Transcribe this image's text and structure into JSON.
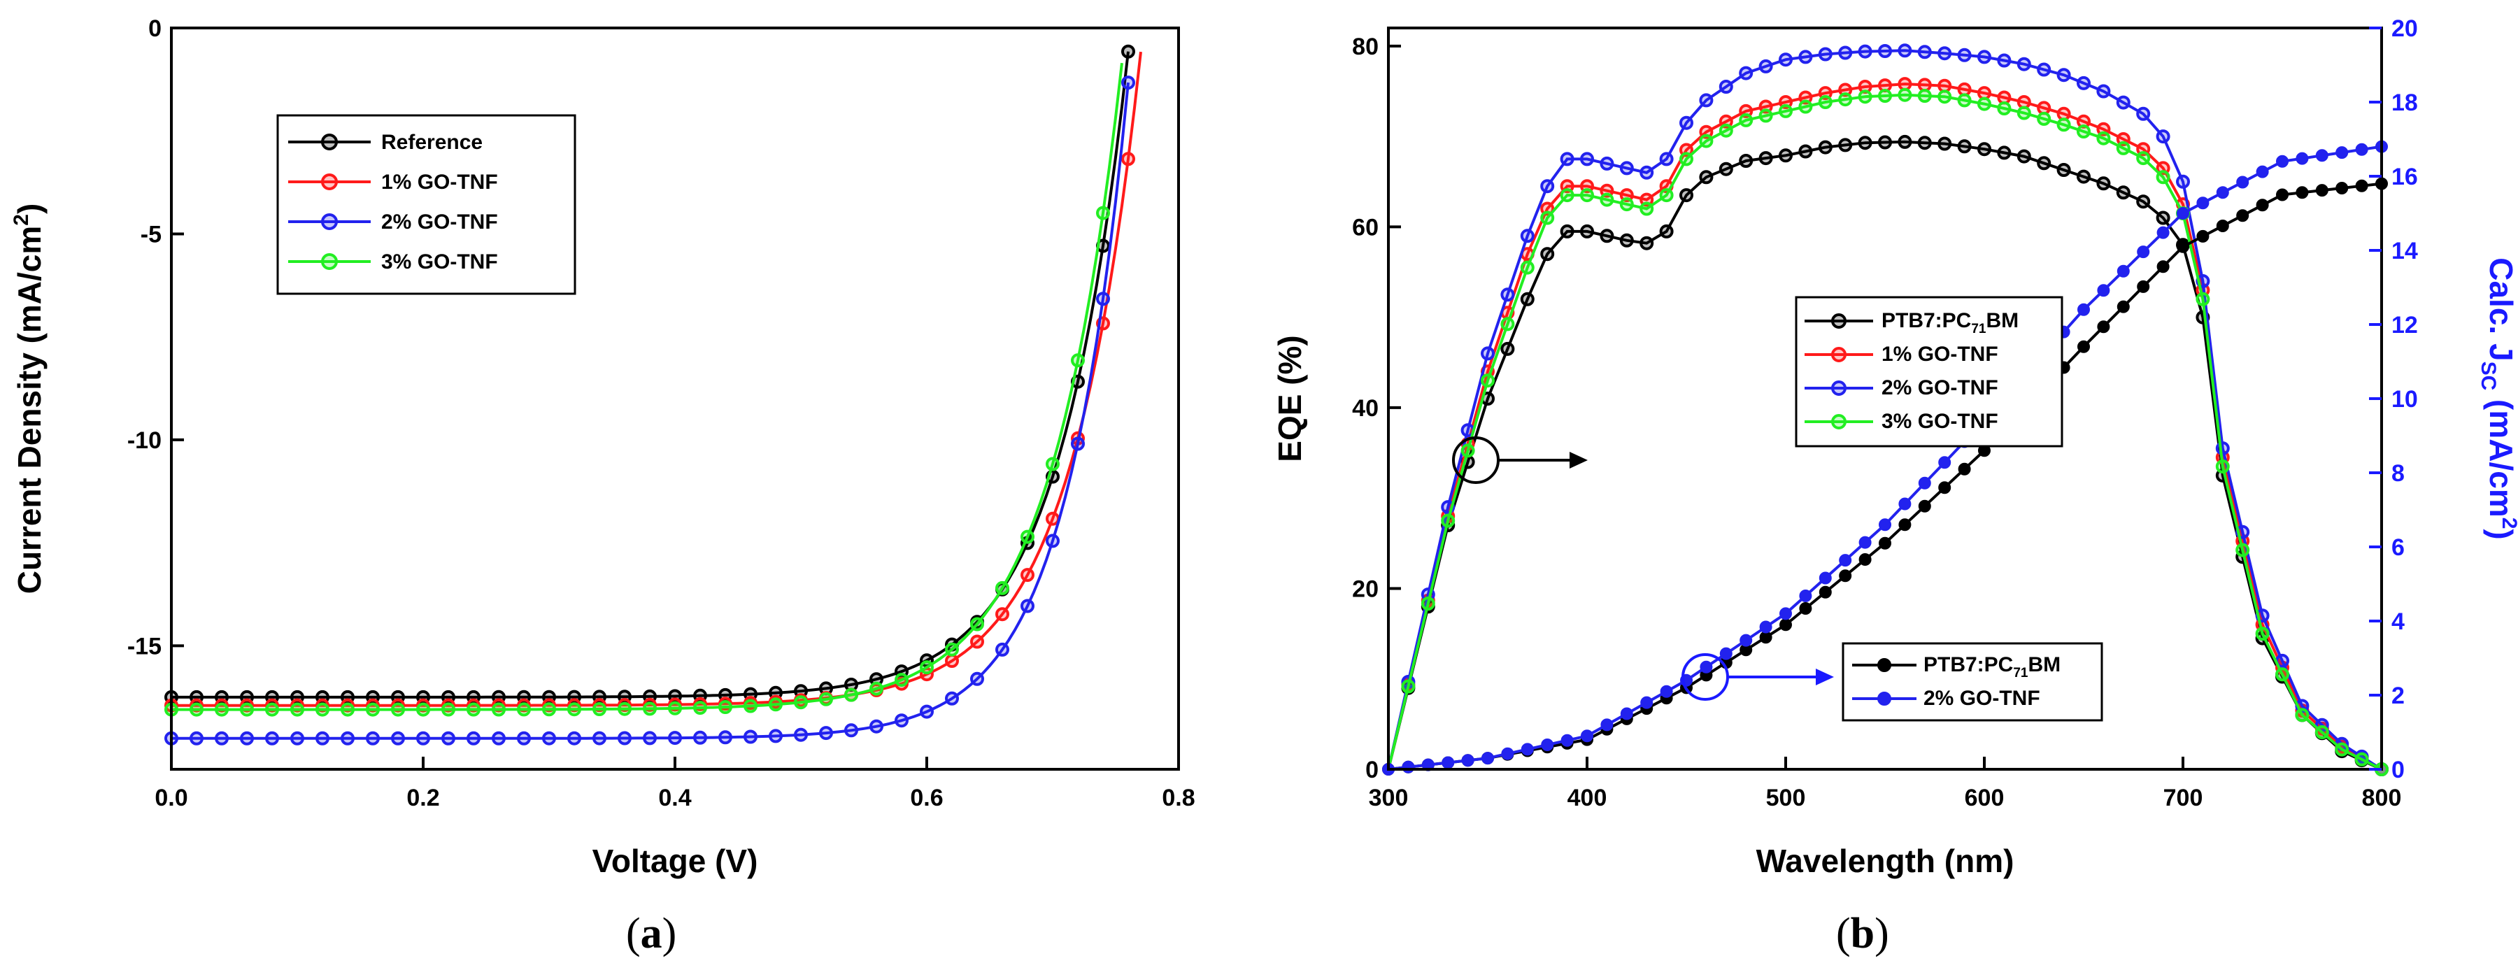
{
  "chart_data": [
    {
      "panel": "a",
      "type": "line",
      "xlabel": "Voltage (V)",
      "ylabel": "Current Density (mA/cm2)",
      "ylabel_parts": {
        "main": "Current Density (mA/cm",
        "sup": "2",
        "end": ")"
      },
      "xlim": [
        0.0,
        0.8
      ],
      "ylim": [
        -18,
        0
      ],
      "xticks": [
        0.0,
        0.2,
        0.4,
        0.6,
        0.8
      ],
      "xtick_labels": [
        "0.0",
        "0.2",
        "0.4",
        "0.6",
        "0.8"
      ],
      "yticks": [
        -15,
        -10,
        -5,
        0
      ],
      "ytick_labels": [
        "-15",
        "-10",
        "-5",
        "0"
      ],
      "legend": [
        "Reference",
        "1% GO-TNF",
        "2% GO-TNF",
        "3% GO-TNF"
      ],
      "series": [
        {
          "name": "Reference",
          "color": "#000000",
          "jsc": 16.25,
          "voc": 0.762,
          "fit": {
            "a": 0.08,
            "b": 17.9
          }
        },
        {
          "name": "1% GO-TNF",
          "color": "#ff1a1a",
          "jsc": 16.45,
          "voc": 0.772,
          "fit": {
            "a": 0.082,
            "b": 17.9
          }
        },
        {
          "name": "2% GO-TNF",
          "color": "#2222ee",
          "jsc": 17.25,
          "voc": 0.764,
          "fit": {
            "a": 0.07,
            "b": 20.0
          }
        },
        {
          "name": "3% GO-TNF",
          "color": "#22ee22",
          "jsc": 16.55,
          "voc": 0.758,
          "fit": {
            "a": 0.08,
            "b": 17.6
          }
        }
      ]
    },
    {
      "panel": "b",
      "type": "line",
      "xlabel": "Wavelength (nm)",
      "ylabel": "EQE (%)",
      "ylabel_right": "Calc. JSC (mA/cm2)",
      "ylabel_right_parts": {
        "main": "Calc. J",
        "sub": "SC",
        "mid": " (mA/cm",
        "sup": "2",
        "end": ")"
      },
      "xlim": [
        300,
        800
      ],
      "ylim": [
        0,
        82
      ],
      "ylim_right": [
        0,
        20
      ],
      "xticks": [
        300,
        400,
        500,
        600,
        700,
        800
      ],
      "xtick_labels": [
        "300",
        "400",
        "500",
        "600",
        "700",
        "800"
      ],
      "yticks": [
        0,
        20,
        40,
        60,
        80
      ],
      "ytick_labels": [
        "0",
        "20",
        "40",
        "60",
        "80"
      ],
      "yticks_right": [
        0,
        2,
        4,
        6,
        8,
        10,
        12,
        14,
        16,
        18,
        20
      ],
      "ytick_labels_right": [
        "0",
        "2",
        "4",
        "6",
        "8",
        "10",
        "12",
        "14",
        "16",
        "18",
        "20"
      ],
      "eqe_wavelengths": [
        300,
        330,
        350,
        370,
        380,
        390,
        400,
        420,
        430,
        440,
        450,
        460,
        480,
        500,
        520,
        540,
        560,
        580,
        600,
        620,
        640,
        660,
        680,
        690,
        700,
        710,
        720,
        740,
        760,
        780,
        800
      ],
      "eqe_series": [
        {
          "name": "PTB7:PC71BM",
          "color": "#000000",
          "values": [
            0,
            27,
            41,
            52,
            57,
            59.5,
            59.5,
            58.5,
            58.2,
            59.5,
            63.5,
            65.5,
            67.3,
            67.9,
            68.8,
            69.3,
            69.4,
            69.2,
            68.6,
            67.8,
            66.3,
            64.8,
            62.8,
            61.0,
            58.0,
            50.0,
            32.5,
            14.5,
            6.0,
            2.0,
            0
          ]
        },
        {
          "name": "1% GO-TNF",
          "color": "#ff1a1a",
          "values": [
            0,
            28,
            44,
            57,
            62,
            64.5,
            64.5,
            63.5,
            63.0,
            64.5,
            68.5,
            70.5,
            72.8,
            73.8,
            74.8,
            75.5,
            75.8,
            75.6,
            74.8,
            73.8,
            72.5,
            70.8,
            68.6,
            66.5,
            62.5,
            53.0,
            34.5,
            16.0,
            6.5,
            2.5,
            0
          ]
        },
        {
          "name": "2% GO-TNF",
          "color": "#2222ee",
          "values": [
            0,
            29,
            46,
            59,
            64.5,
            67.5,
            67.5,
            66.5,
            66.0,
            67.5,
            71.5,
            74.0,
            77.0,
            78.5,
            79.1,
            79.4,
            79.5,
            79.2,
            78.8,
            78.0,
            76.8,
            75.0,
            72.5,
            70.0,
            65.0,
            54.0,
            35.5,
            17.0,
            7.0,
            2.8,
            0
          ]
        },
        {
          "name": "3% GO-TNF",
          "color": "#22ee22",
          "values": [
            0,
            27.5,
            43,
            55.5,
            61,
            63.5,
            63.5,
            62.5,
            62.0,
            63.5,
            67.5,
            69.5,
            71.8,
            72.8,
            73.8,
            74.4,
            74.6,
            74.4,
            73.6,
            72.6,
            71.3,
            69.8,
            67.6,
            65.5,
            61.5,
            52.0,
            33.5,
            15.0,
            6.0,
            2.2,
            0
          ]
        }
      ],
      "jsc_wavelengths": [
        300,
        350,
        400,
        450,
        500,
        550,
        600,
        650,
        700,
        750,
        800
      ],
      "jsc_series": [
        {
          "name": "PTB7:PC71BM",
          "color": "#000000",
          "values": [
            0,
            0.3,
            0.8,
            2.2,
            3.9,
            6.1,
            8.6,
            11.4,
            14.1,
            15.5,
            15.8
          ]
        },
        {
          "name": "2% GO-TNF",
          "color": "#2222ee",
          "values": [
            0,
            0.3,
            0.9,
            2.4,
            4.2,
            6.6,
            9.4,
            12.4,
            15.0,
            16.4,
            16.8
          ]
        }
      ],
      "legend_eqe": [
        "PTB7:PC71BM",
        "1% GO-TNF",
        "2% GO-TNF",
        "3% GO-TNF"
      ],
      "legend_jsc": [
        "PTB7:PC71BM",
        "2% GO-TNF"
      ],
      "legend_label_parts": {
        "main": "PTB7:PC",
        "sub": "71",
        "end": "BM"
      }
    }
  ],
  "panel_labels": {
    "a": {
      "open": "(",
      "letter": "a",
      "close": ")"
    },
    "b": {
      "open": "(",
      "letter": "b",
      "close": ")"
    }
  },
  "colors": {
    "black": "#000000",
    "red": "#ff1a1a",
    "blue": "#2222ee",
    "green": "#22ee22",
    "right_axis": "#1a1aff"
  }
}
